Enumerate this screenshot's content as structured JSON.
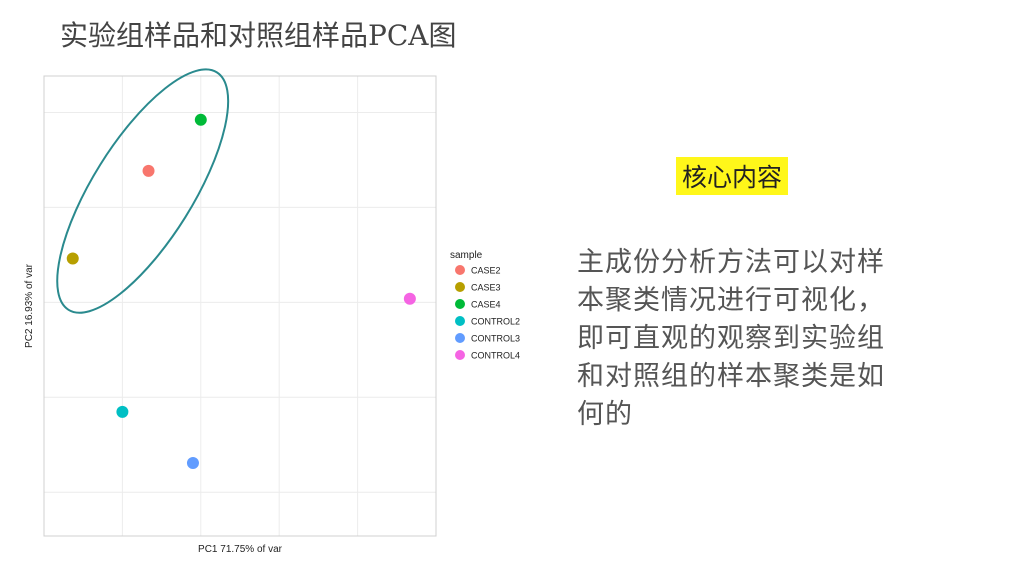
{
  "slide": {
    "title": "实验组样品和对照组样品PCA图",
    "highlight_label": "核心内容",
    "highlight_color": "#fff71a",
    "explanation": "主成份分析方法可以对样本聚类情况进行可视化，即可直观的观察到实验组和对照组的样本聚类是如何的"
  },
  "chart_data": {
    "type": "scatter",
    "xlabel": "PC1 71.75% of var",
    "ylabel": "PC2 16.93% of var",
    "xlim": [
      -3,
      4.5
    ],
    "ylim": [
      -3.4,
      2.9
    ],
    "grid": true,
    "legend_title": "sample",
    "legend_position": "right",
    "series": [
      {
        "name": "CASE2",
        "color": "#f8766d",
        "x": -1.0,
        "y": 1.6
      },
      {
        "name": "CASE3",
        "color": "#b79f00",
        "x": -2.45,
        "y": 0.4
      },
      {
        "name": "CASE4",
        "color": "#00ba38",
        "x": 0.0,
        "y": 2.3
      },
      {
        "name": "CONTROL2",
        "color": "#00bfc4",
        "x": -1.5,
        "y": -1.7
      },
      {
        "name": "CONTROL3",
        "color": "#619cff",
        "x": -0.15,
        "y": -2.4
      },
      {
        "name": "CONTROL4",
        "color": "#f564e3",
        "x": 4.0,
        "y": -0.15
      }
    ],
    "annotation": {
      "shape": "ellipse",
      "color": "#2a8a8e",
      "encloses": [
        "CASE2",
        "CASE3",
        "CASE4"
      ]
    }
  }
}
